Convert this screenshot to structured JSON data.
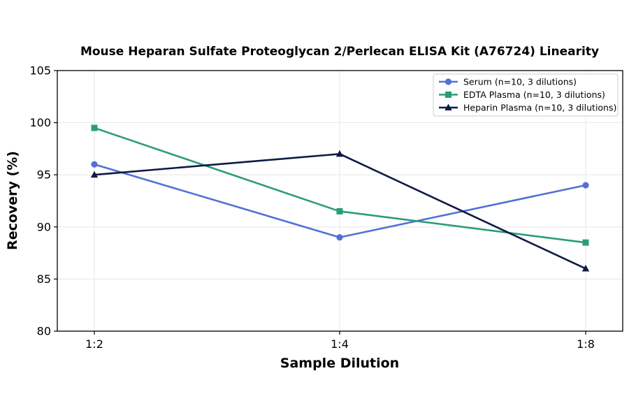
{
  "chart_data": {
    "type": "line",
    "title": "Mouse Heparan Sulfate Proteoglycan 2/Perlecan ELISA Kit (A76724) Linearity",
    "xlabel": "Sample Dilution",
    "ylabel": "Recovery (%)",
    "categories": [
      "1:2",
      "1:4",
      "1:8"
    ],
    "ylim": [
      80,
      105
    ],
    "yticks": [
      80,
      85,
      90,
      95,
      100,
      105
    ],
    "grid": true,
    "legend_position": "top-right",
    "series": [
      {
        "name": "Serum (n=10, 3 dilutions)",
        "values": [
          96,
          89,
          94
        ],
        "color": "#5470d6",
        "marker": "circle"
      },
      {
        "name": "EDTA Plasma (n=10, 3 dilutions)",
        "values": [
          99.5,
          91.5,
          88.5
        ],
        "color": "#2a9d78",
        "marker": "square"
      },
      {
        "name": "Heparin Plasma (n=10, 3 dilutions)",
        "values": [
          95,
          97,
          86
        ],
        "color": "#0e1a45",
        "marker": "triangle"
      }
    ]
  }
}
